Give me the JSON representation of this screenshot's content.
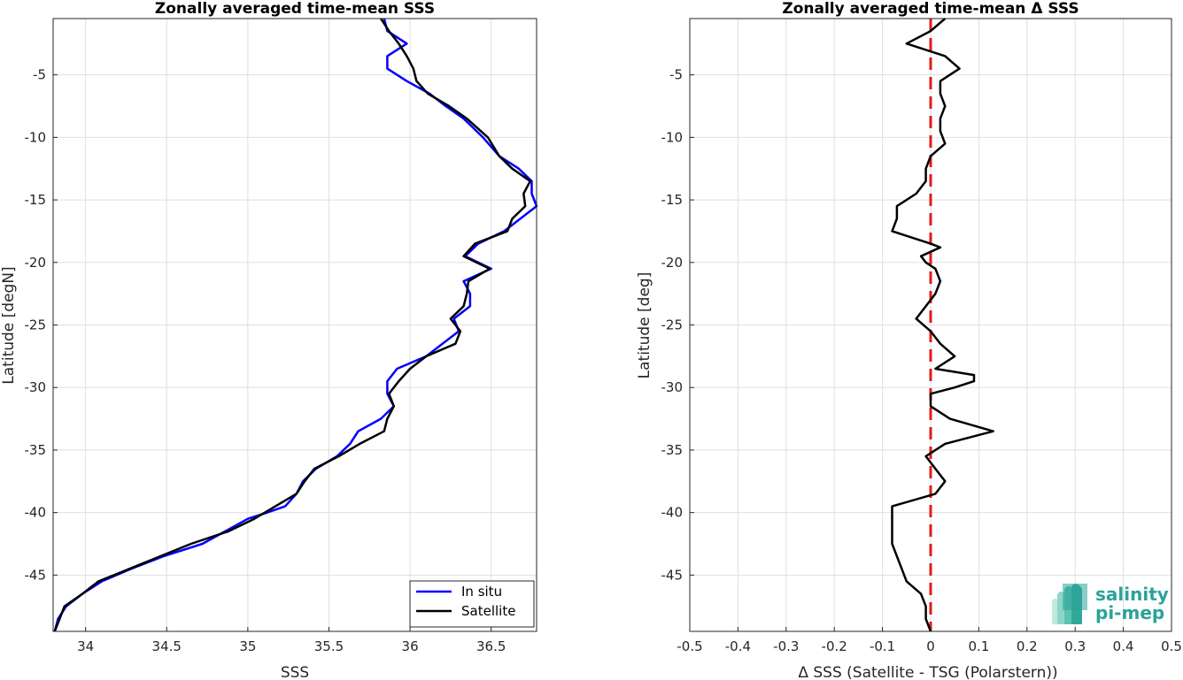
{
  "chart_data": [
    {
      "type": "line",
      "title": "Zonally averaged time-mean SSS",
      "xlabel": "SSS",
      "ylabel": "Latitude [degN]",
      "xlim": [
        33.8,
        36.78
      ],
      "ylim": [
        -49.5,
        -0.5
      ],
      "xticks": [
        34,
        34.5,
        35,
        35.5,
        36,
        36.5
      ],
      "xtick_labels": [
        "34",
        "34.5",
        "35",
        "35.5",
        "36",
        "36.5"
      ],
      "yticks": [
        -5,
        -10,
        -15,
        -20,
        -25,
        -30,
        -35,
        -40,
        -45
      ],
      "ytick_labels": [
        "-5",
        "-10",
        "-15",
        "-20",
        "-25",
        "-30",
        "-35",
        "-40",
        "-45"
      ],
      "grid": true,
      "legend": "bottom-right",
      "series": [
        {
          "name": "In situ",
          "color": "#0000ff",
          "points": [
            [
              35.84,
              -0.5
            ],
            [
              35.86,
              -1.5
            ],
            [
              35.98,
              -2.5
            ],
            [
              35.86,
              -3.5
            ],
            [
              35.86,
              -4.5
            ],
            [
              35.98,
              -5.5
            ],
            [
              36.12,
              -6.5
            ],
            [
              36.22,
              -7.5
            ],
            [
              36.33,
              -8.5
            ],
            [
              36.45,
              -10
            ],
            [
              36.55,
              -11.5
            ],
            [
              36.67,
              -12.5
            ],
            [
              36.75,
              -13.5
            ],
            [
              36.75,
              -14.5
            ],
            [
              36.78,
              -15.5
            ],
            [
              36.68,
              -16.5
            ],
            [
              36.58,
              -17.5
            ],
            [
              36.42,
              -18.5
            ],
            [
              36.34,
              -19.5
            ],
            [
              36.5,
              -20.5
            ],
            [
              36.33,
              -21.5
            ],
            [
              36.37,
              -22.5
            ],
            [
              36.37,
              -23.5
            ],
            [
              36.27,
              -24.5
            ],
            [
              36.3,
              -25.5
            ],
            [
              36.2,
              -26.5
            ],
            [
              36.1,
              -27.5
            ],
            [
              35.92,
              -28.5
            ],
            [
              35.86,
              -29.5
            ],
            [
              35.86,
              -30.5
            ],
            [
              35.9,
              -31.5
            ],
            [
              35.82,
              -32.5
            ],
            [
              35.68,
              -33.5
            ],
            [
              35.63,
              -34.5
            ],
            [
              35.55,
              -35.5
            ],
            [
              35.42,
              -36.5
            ],
            [
              35.34,
              -37.5
            ],
            [
              35.3,
              -38.5
            ],
            [
              35.23,
              -39.5
            ],
            [
              35.12,
              -40
            ],
            [
              35.0,
              -40.5
            ],
            [
              34.86,
              -41.5
            ],
            [
              34.72,
              -42.5
            ],
            [
              34.48,
              -43.5
            ],
            [
              34.28,
              -44.5
            ],
            [
              34.1,
              -45.5
            ],
            [
              33.98,
              -46.5
            ],
            [
              33.88,
              -47.5
            ],
            [
              33.83,
              -48.5
            ],
            [
              33.81,
              -49.5
            ]
          ]
        },
        {
          "name": "Satellite",
          "color": "#000000",
          "points": [
            [
              35.82,
              -0.5
            ],
            [
              35.87,
              -1.5
            ],
            [
              35.93,
              -2.5
            ],
            [
              35.98,
              -3.5
            ],
            [
              36.02,
              -4.5
            ],
            [
              36.04,
              -5.5
            ],
            [
              36.11,
              -6.5
            ],
            [
              36.24,
              -7.5
            ],
            [
              36.35,
              -8.5
            ],
            [
              36.48,
              -10
            ],
            [
              36.55,
              -11.5
            ],
            [
              36.63,
              -12.5
            ],
            [
              36.74,
              -13.5
            ],
            [
              36.7,
              -14.5
            ],
            [
              36.71,
              -15.5
            ],
            [
              36.63,
              -16.5
            ],
            [
              36.6,
              -17.5
            ],
            [
              36.4,
              -18.5
            ],
            [
              36.33,
              -19.5
            ],
            [
              36.49,
              -20.5
            ],
            [
              36.36,
              -21.5
            ],
            [
              36.35,
              -22.5
            ],
            [
              36.33,
              -23.5
            ],
            [
              36.25,
              -24.5
            ],
            [
              36.31,
              -25.5
            ],
            [
              36.28,
              -26.5
            ],
            [
              36.1,
              -27.5
            ],
            [
              36.0,
              -28.5
            ],
            [
              35.93,
              -29.5
            ],
            [
              35.87,
              -30.5
            ],
            [
              35.9,
              -31.5
            ],
            [
              35.86,
              -32.5
            ],
            [
              35.84,
              -33.5
            ],
            [
              35.69,
              -34.5
            ],
            [
              35.56,
              -35.5
            ],
            [
              35.41,
              -36.5
            ],
            [
              35.35,
              -37.5
            ],
            [
              35.3,
              -38.5
            ],
            [
              35.17,
              -39.5
            ],
            [
              35.04,
              -40.5
            ],
            [
              34.88,
              -41.5
            ],
            [
              34.65,
              -42.5
            ],
            [
              34.46,
              -43.5
            ],
            [
              34.27,
              -44.5
            ],
            [
              34.08,
              -45.5
            ],
            [
              33.98,
              -46.5
            ],
            [
              33.87,
              -47.5
            ],
            [
              33.84,
              -48.5
            ],
            [
              33.81,
              -49.5
            ]
          ]
        }
      ]
    },
    {
      "type": "line",
      "title": "Zonally averaged time-mean Δ SSS",
      "xlabel": "Δ SSS (Satellite - TSG (Polarstern))",
      "ylabel": "Latitude [deg]",
      "xlim": [
        -0.5,
        0.5
      ],
      "ylim": [
        -49.5,
        -0.5
      ],
      "xticks": [
        -0.5,
        -0.4,
        -0.3,
        -0.2,
        -0.1,
        0,
        0.1,
        0.2,
        0.3,
        0.4,
        0.5
      ],
      "xtick_labels": [
        "-0.5",
        "-0.4",
        "-0.3",
        "-0.2",
        "-0.1",
        "0",
        "0.1",
        "0.2",
        "0.3",
        "0.4",
        "0.5"
      ],
      "yticks": [
        -5,
        -10,
        -15,
        -20,
        -25,
        -30,
        -35,
        -40,
        -45
      ],
      "ytick_labels": [
        "-5",
        "-10",
        "-15",
        "-20",
        "-25",
        "-30",
        "-35",
        "-40",
        "-45"
      ],
      "grid": true,
      "reference_line": {
        "x": 0,
        "color": "#e31a1c",
        "style": "dashed"
      },
      "series": [
        {
          "color": "#000000",
          "points": [
            [
              0.03,
              -0.5
            ],
            [
              0.0,
              -1.5
            ],
            [
              -0.05,
              -2.5
            ],
            [
              0.03,
              -3.5
            ],
            [
              0.06,
              -4.5
            ],
            [
              0.02,
              -5.5
            ],
            [
              0.02,
              -6.5
            ],
            [
              0.03,
              -7.5
            ],
            [
              0.02,
              -8.5
            ],
            [
              0.02,
              -9.5
            ],
            [
              0.03,
              -10.5
            ],
            [
              0.0,
              -11.5
            ],
            [
              -0.01,
              -12.5
            ],
            [
              -0.01,
              -13.5
            ],
            [
              -0.03,
              -14.5
            ],
            [
              -0.07,
              -15.5
            ],
            [
              -0.07,
              -16.5
            ],
            [
              -0.08,
              -17.5
            ],
            [
              0.0,
              -18.5
            ],
            [
              0.02,
              -18.8
            ],
            [
              -0.02,
              -19.5
            ],
            [
              -0.01,
              -20
            ],
            [
              0.01,
              -20.5
            ],
            [
              0.02,
              -21.5
            ],
            [
              0.01,
              -22.5
            ],
            [
              -0.01,
              -23.5
            ],
            [
              -0.03,
              -24.5
            ],
            [
              0.0,
              -25.5
            ],
            [
              0.02,
              -26.5
            ],
            [
              0.05,
              -27.5
            ],
            [
              0.01,
              -28.5
            ],
            [
              0.09,
              -29
            ],
            [
              0.09,
              -29.5
            ],
            [
              0.05,
              -30
            ],
            [
              0.0,
              -30.5
            ],
            [
              0.0,
              -31.5
            ],
            [
              0.04,
              -32.5
            ],
            [
              0.13,
              -33.5
            ],
            [
              0.03,
              -34.5
            ],
            [
              -0.01,
              -35.5
            ],
            [
              0.01,
              -36.5
            ],
            [
              0.03,
              -37.5
            ],
            [
              0.01,
              -38.5
            ],
            [
              -0.08,
              -39.5
            ],
            [
              -0.08,
              -40.5
            ],
            [
              -0.08,
              -41.5
            ],
            [
              -0.08,
              -42.5
            ],
            [
              -0.07,
              -43.5
            ],
            [
              -0.06,
              -44.5
            ],
            [
              -0.05,
              -45.5
            ],
            [
              -0.02,
              -46.5
            ],
            [
              -0.01,
              -47.5
            ],
            [
              -0.01,
              -48.5
            ],
            [
              0.0,
              -49.5
            ]
          ]
        }
      ]
    }
  ],
  "logo": {
    "line1": "salinity",
    "line2": "pi-mep",
    "color": "#2aa39a"
  }
}
